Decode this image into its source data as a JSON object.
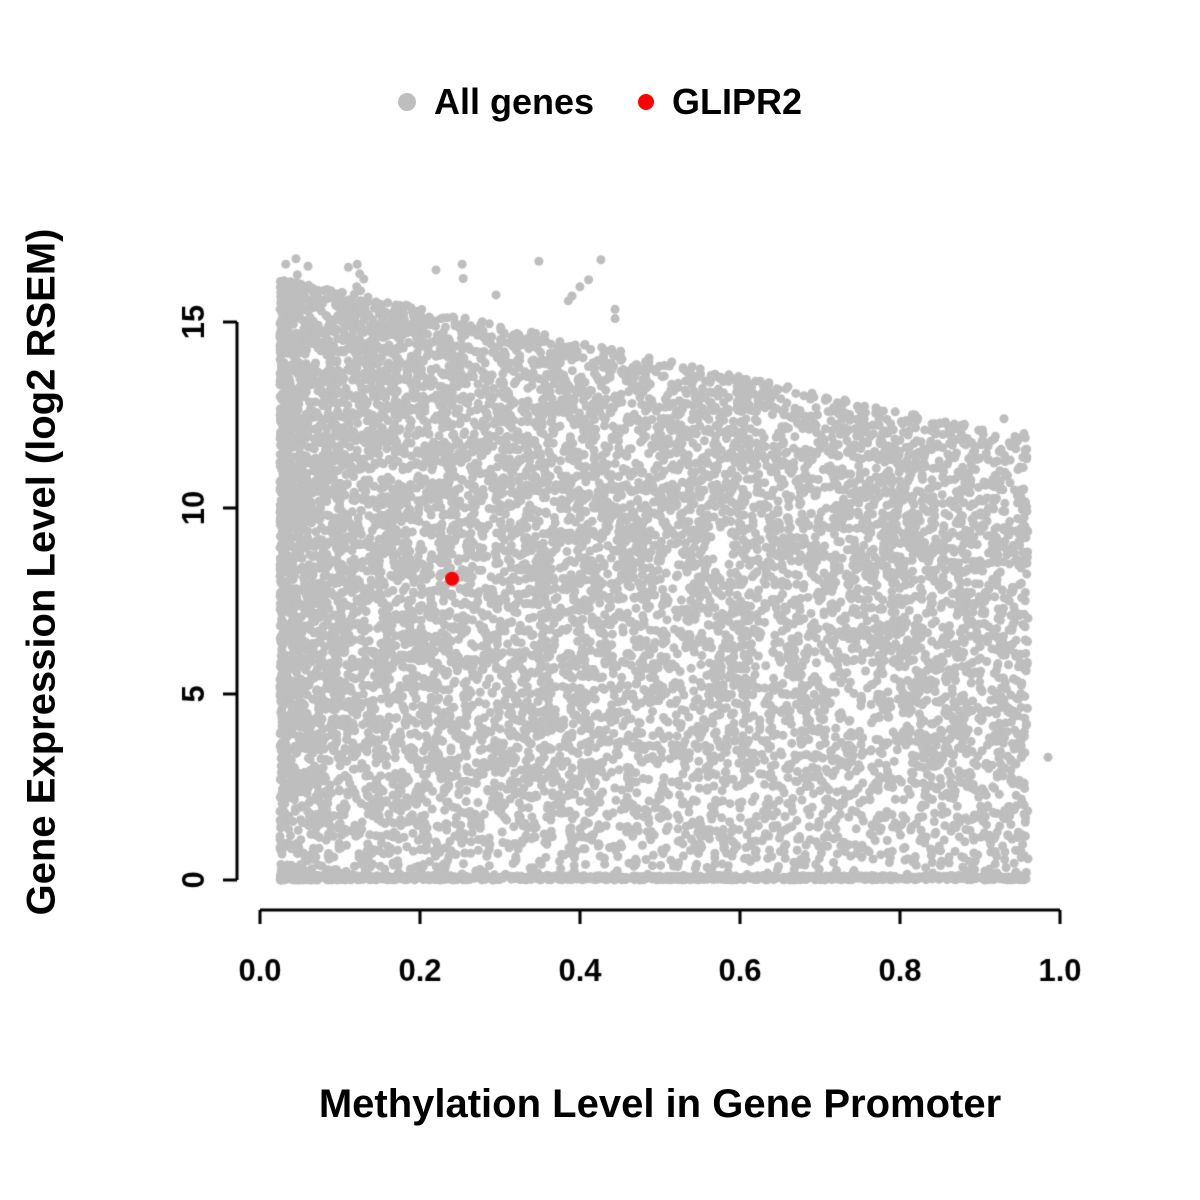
{
  "legend": {
    "items": [
      {
        "label": "All genes",
        "color": "#bebebe"
      },
      {
        "label": "GLIPR2",
        "color": "#ff0000"
      }
    ]
  },
  "chart_data": {
    "type": "scatter",
    "xlabel": "Methylation Level in Gene Promoter",
    "ylabel": "Gene Expression Level (log2 RSEM)",
    "xlim": [
      0.0,
      1.0
    ],
    "ylim": [
      0,
      15
    ],
    "x_ticks": {
      "values": [
        0.0,
        0.2,
        0.4,
        0.6,
        0.8,
        1.0
      ],
      "labels": [
        "0.0",
        "0.2",
        "0.4",
        "0.6",
        "0.8",
        "1.0"
      ]
    },
    "y_ticks": {
      "values": [
        0,
        5,
        10,
        15
      ],
      "labels": [
        "0",
        "5",
        "10",
        "15"
      ]
    },
    "grid": false,
    "legend_position": "top-center",
    "series": [
      {
        "name": "All genes",
        "color": "#bebebe",
        "marker": "filled-circle",
        "point_radius": 4.5,
        "description": "Dense cloud of ~11000 genes; methylation 0.02-0.96, expression 0-16.8 log2 RSEM; upper envelope of expression decreases with increasing promoter methylation (about 16 at beta=0 down to about 12 at beta=0.95); dense band of zero-expression genes along the bottom across all methylation levels.",
        "cloud": {
          "seed": 42,
          "n_points": 11000,
          "x_min": 0.025,
          "x_max": 0.96,
          "x_skew": 1.45,
          "y_env_intercept": 16.3,
          "y_env_slope": -4.6,
          "y_skew": 0.82,
          "bottom_band_fraction": 0.09,
          "high_outliers": 28,
          "extra_points": [
            [
              0.985,
              3.3
            ],
            [
              0.955,
              12.0
            ],
            [
              0.93,
              12.4
            ],
            [
              0.39,
              15.7
            ],
            [
              0.22,
              16.4
            ],
            [
              0.045,
              16.7
            ],
            [
              0.06,
              16.5
            ]
          ]
        }
      },
      {
        "name": "GLIPR2",
        "color": "#ff0000",
        "marker": "filled-circle",
        "point_radius": 7,
        "points": [
          [
            0.24,
            8.1
          ]
        ]
      }
    ]
  }
}
